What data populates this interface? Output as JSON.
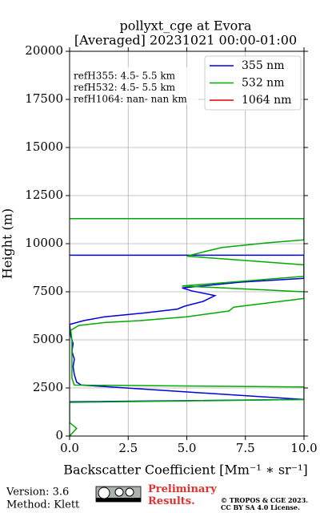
{
  "chart_data": {
    "type": "profile",
    "title": "pollyxt_cge at Evora",
    "subtitle": "[Averaged] 20231021 00:00-01:00",
    "x_label": "Backscatter Coefficient [Mm⁻¹ ∗ sr⁻¹]",
    "y_label": "Height (m)",
    "xlim": [
      0,
      10
    ],
    "ylim": [
      0,
      20000
    ],
    "xticks": [
      {
        "value": 0,
        "label": "0.0"
      },
      {
        "value": 2.5,
        "label": "2.5"
      },
      {
        "value": 5,
        "label": "5.0"
      },
      {
        "value": 7.5,
        "label": "7.5"
      },
      {
        "value": 10,
        "label": "10.0"
      }
    ],
    "yticks": [
      0,
      2500,
      5000,
      7500,
      10000,
      12500,
      15000,
      17500,
      20000
    ],
    "grid": true,
    "legend": "upper right",
    "annotations": [
      "refH355:  4.5- 5.5 km",
      "refH532:  4.5- 5.5 km",
      "refH1064:  nan- nan km"
    ],
    "series": [
      {
        "name": "355 nm",
        "color": "#0000dd",
        "values": [
          0,
          10,
          0.5,
          0.3,
          0.2,
          0.15,
          0.2,
          0.1,
          0.15,
          0.05,
          0,
          0.6,
          1.5,
          3.2,
          4.6,
          4.9,
          5.7,
          6.2,
          5.2,
          4.8,
          7.3,
          10,
          10,
          0
        ],
        "heights": [
          1780,
          1900,
          2650,
          2800,
          3200,
          3600,
          4000,
          4400,
          4800,
          5200,
          5800,
          6000,
          6200,
          6400,
          6600,
          6750,
          7000,
          7300,
          7550,
          7700,
          8000,
          8200,
          9400,
          9400
        ]
      },
      {
        "name": "532 nm",
        "color": "#00aa00",
        "values": [
          0,
          0.3,
          0,
          0,
          10,
          10,
          0.2,
          0.1,
          0.1,
          0.05,
          0.4,
          1.5,
          3,
          5,
          6.8,
          7,
          10,
          10,
          4.8,
          10,
          10,
          5,
          5.8,
          6.5,
          8.5,
          10,
          10,
          0
        ],
        "heights": [
          0,
          400,
          700,
          1750,
          1900,
          2550,
          2650,
          3000,
          5000,
          5500,
          5750,
          5900,
          6000,
          6200,
          6500,
          6700,
          7150,
          7500,
          7800,
          8300,
          8900,
          9350,
          9600,
          9800,
          10050,
          10200,
          11300,
          11300
        ]
      },
      {
        "name": "1064 nm",
        "color": "#dd0000",
        "values": [],
        "heights": []
      }
    ]
  },
  "footer": {
    "version": "Version: 3.6",
    "method": "Method: Klett",
    "status": "Preliminary Results.",
    "copyright": "© TROPOS & CGE 2023.",
    "license": "CC BY SA 4.0 License."
  }
}
